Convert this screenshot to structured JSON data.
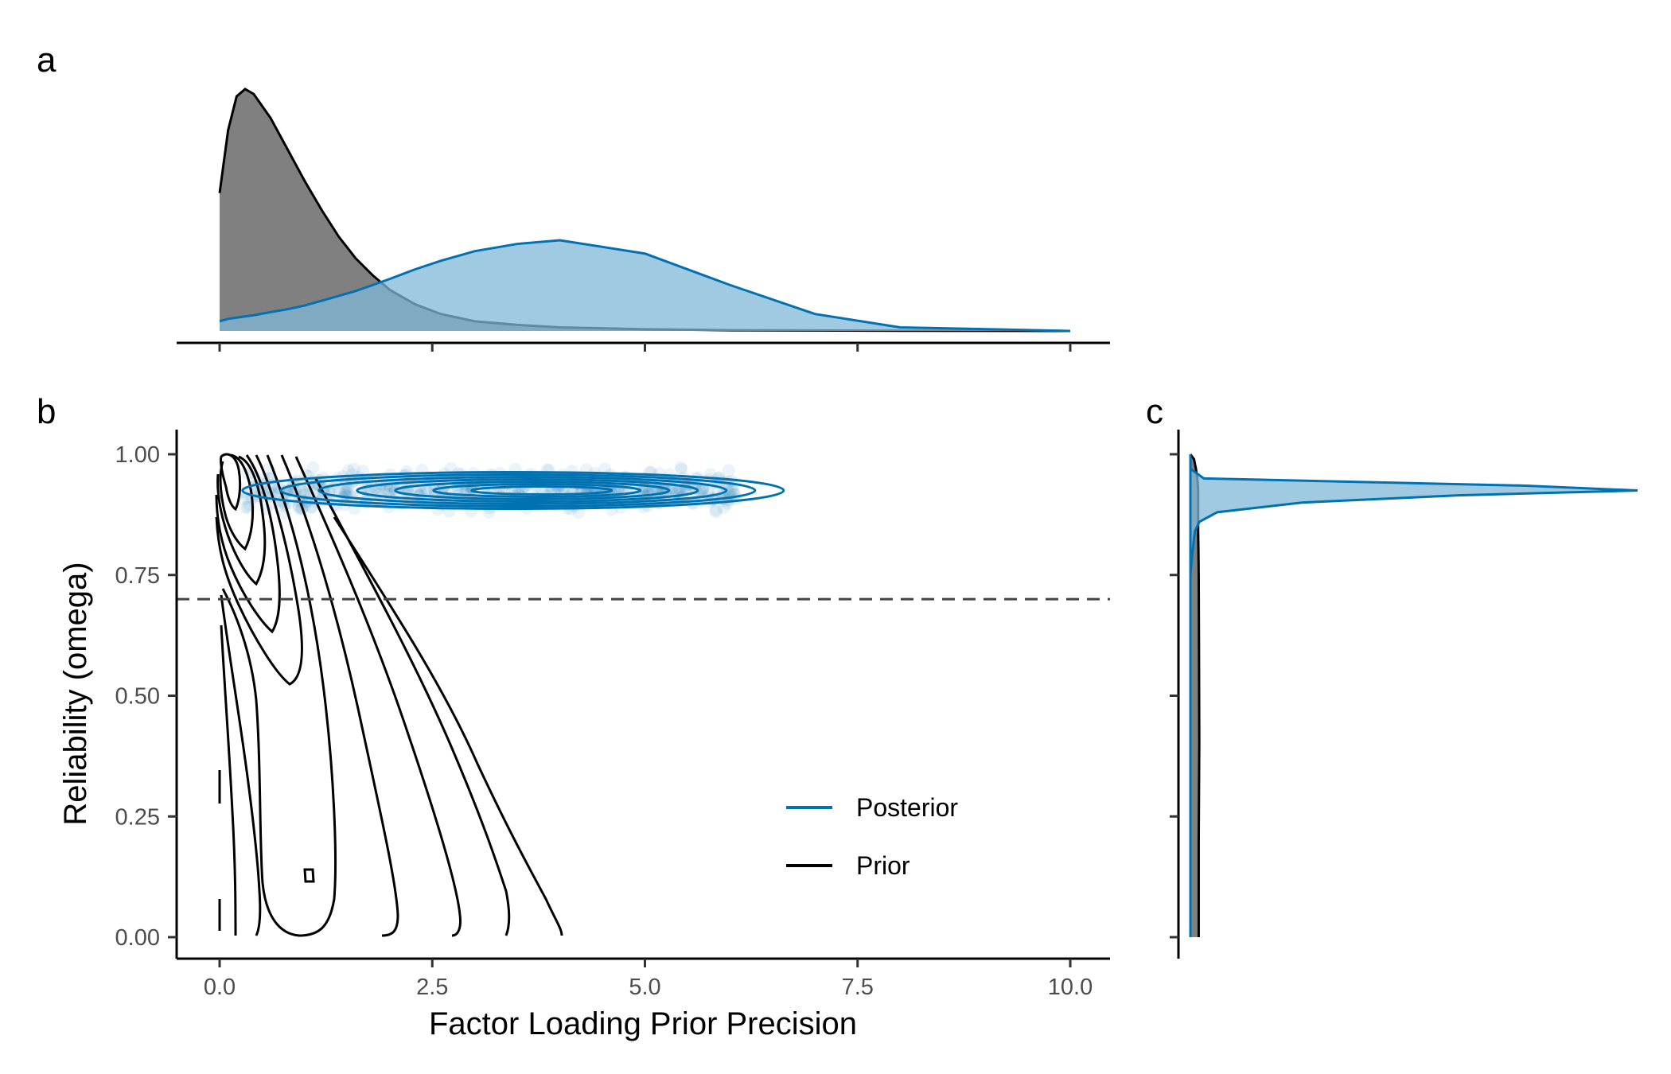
{
  "panels": {
    "a": "a",
    "b": "b",
    "c": "c"
  },
  "colors": {
    "posterior": "#0072B2",
    "posterior_fill": "#80B8D8",
    "prior": "#000000",
    "prior_fill": "#808080",
    "reference": "#444444"
  },
  "chart_data": [
    {
      "panel": "a",
      "type": "area",
      "x": [
        0,
        0.1,
        0.2,
        0.3,
        0.4,
        0.6,
        0.8,
        1.0,
        1.2,
        1.4,
        1.6,
        1.8,
        2.0,
        2.3,
        2.6,
        3.0,
        3.5,
        4.0,
        5.0,
        6.0,
        7.0,
        8.0,
        10.0
      ],
      "series": [
        {
          "name": "Prior",
          "values": [
            0.57,
            0.83,
            0.97,
            1.0,
            0.98,
            0.88,
            0.75,
            0.62,
            0.5,
            0.39,
            0.3,
            0.23,
            0.17,
            0.11,
            0.07,
            0.04,
            0.025,
            0.015,
            0.007,
            0.003,
            0.002,
            0.001,
            0
          ]
        },
        {
          "name": "Posterior",
          "values": [
            0.04,
            0.05,
            0.055,
            0.06,
            0.065,
            0.078,
            0.09,
            0.105,
            0.125,
            0.145,
            0.165,
            0.19,
            0.215,
            0.255,
            0.29,
            0.33,
            0.36,
            0.375,
            0.32,
            0.19,
            0.07,
            0.015,
            0
          ]
        }
      ],
      "xlim": [
        -0.5,
        10.5
      ],
      "xticks": [
        0,
        2.5,
        5,
        7.5,
        10
      ]
    },
    {
      "panel": "b",
      "type": "scatter",
      "xlabel": "Factor Loading Prior Precision",
      "ylabel": "Reliability (omega)",
      "xlim": [
        -0.5,
        10.5
      ],
      "ylim": [
        -0.05,
        1.05
      ],
      "xticks": [
        "0.0",
        "2.5",
        "5.0",
        "7.5",
        "10.0"
      ],
      "yticks": [
        "0.00",
        "0.25",
        "0.50",
        "0.75",
        "1.00"
      ],
      "reference_line": {
        "y": 0.7,
        "style": "dashed"
      },
      "posterior_points": {
        "x_range": [
          0.3,
          6.1
        ],
        "y_range": [
          0.86,
          0.97
        ],
        "center_y": 0.925
      },
      "legend": {
        "position": "bottom-right",
        "entries": [
          "Posterior",
          "Prior"
        ]
      },
      "series": [
        {
          "name": "Posterior",
          "representation": "scatter + density contours"
        },
        {
          "name": "Prior",
          "representation": "density contours"
        }
      ]
    },
    {
      "panel": "c",
      "type": "area",
      "orientation": "vertical",
      "y": [
        0,
        0.2,
        0.4,
        0.6,
        0.75,
        0.8,
        0.84,
        0.86,
        0.88,
        0.9,
        0.915,
        0.925,
        0.935,
        0.95,
        0.97,
        0.99,
        1.0
      ],
      "series": [
        {
          "name": "Posterior",
          "values": [
            0,
            0,
            0,
            0,
            0.0,
            0.005,
            0.01,
            0.02,
            0.06,
            0.25,
            0.6,
            1.0,
            0.75,
            0.03,
            0.0,
            0.0,
            0.0
          ]
        },
        {
          "name": "Prior",
          "values": [
            0.03,
            0.03,
            0.032,
            0.031,
            0.03,
            0.029,
            0.028,
            0.028,
            0.028,
            0.028,
            0.028,
            0.028,
            0.027,
            0.025,
            0.02,
            0.013,
            0.0
          ]
        }
      ],
      "ylim": [
        -0.05,
        1.05
      ]
    }
  ]
}
